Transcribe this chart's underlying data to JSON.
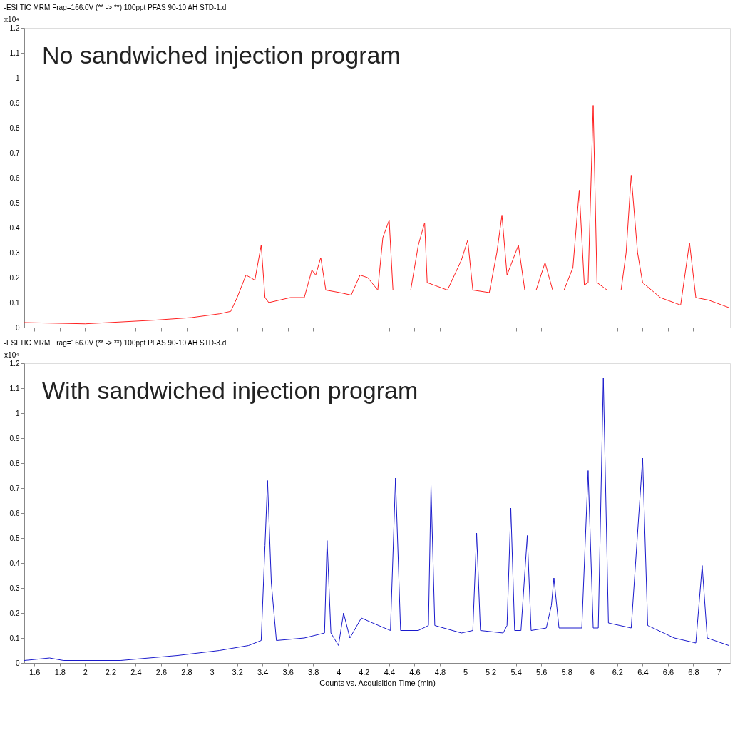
{
  "chart_data": [
    {
      "type": "line",
      "title": "-ESI TIC MRM Frag=166.0V (** -> **) 100ppt PFAS 90-10 AH STD-1.d",
      "ylabel": "x10⁴",
      "annotations": [
        "No sandwiched injection program"
      ],
      "tick_labels": "y",
      "grid": false,
      "marker": "none",
      "line_style": "solid",
      "xlim": [
        1.52,
        7.09
      ],
      "ylim": [
        0,
        1.2
      ],
      "xticks": [
        1.6,
        1.8,
        2,
        2.2,
        2.4,
        2.6,
        2.8,
        3,
        3.2,
        3.4,
        3.6,
        3.8,
        4,
        4.2,
        4.4,
        4.6,
        4.8,
        5,
        5.2,
        5.4,
        5.6,
        5.8,
        6,
        6.2,
        6.4,
        6.6,
        6.8,
        7
      ],
      "yticks": [
        0,
        0.1,
        0.2,
        0.3,
        0.4,
        0.5,
        0.6,
        0.7,
        0.8,
        0.9,
        1,
        1.1,
        1.2
      ],
      "series": [
        {
          "color": "#ff2020",
          "x": [
            1.52,
            2.0,
            2.56,
            2.84,
            3.06,
            3.15,
            3.2,
            3.27,
            3.34,
            3.39,
            3.42,
            3.45,
            3.62,
            3.73,
            3.79,
            3.82,
            3.86,
            3.9,
            4.01,
            4.1,
            4.17,
            4.23,
            4.31,
            4.35,
            4.4,
            4.43,
            4.57,
            4.63,
            4.68,
            4.7,
            4.86,
            4.97,
            5.02,
            5.06,
            5.19,
            5.25,
            5.29,
            5.33,
            5.42,
            5.47,
            5.56,
            5.63,
            5.69,
            5.78,
            5.85,
            5.9,
            5.94,
            5.97,
            6.01,
            6.04,
            6.12,
            6.23,
            6.27,
            6.31,
            6.36,
            6.4,
            6.54,
            6.7,
            6.77,
            6.82,
            6.92,
            7.08
          ],
          "values": [
            0.02,
            0.015,
            0.03,
            0.04,
            0.055,
            0.065,
            0.12,
            0.21,
            0.19,
            0.33,
            0.12,
            0.1,
            0.12,
            0.12,
            0.23,
            0.21,
            0.28,
            0.15,
            0.14,
            0.13,
            0.21,
            0.2,
            0.15,
            0.36,
            0.43,
            0.15,
            0.15,
            0.33,
            0.42,
            0.18,
            0.15,
            0.27,
            0.35,
            0.15,
            0.14,
            0.3,
            0.45,
            0.21,
            0.33,
            0.15,
            0.15,
            0.26,
            0.15,
            0.15,
            0.24,
            0.55,
            0.17,
            0.18,
            0.89,
            0.18,
            0.15,
            0.15,
            0.3,
            0.61,
            0.3,
            0.18,
            0.12,
            0.09,
            0.34,
            0.12,
            0.11,
            0.08
          ]
        }
      ]
    },
    {
      "type": "line",
      "title": "-ESI TIC MRM Frag=166.0V (** -> **) 100ppt PFAS 90-10 AH STD-3.d",
      "ylabel": "x10⁴",
      "xlabel": "Counts vs. Acquisition Time (min)",
      "annotations": [
        "With sandwiched injection program"
      ],
      "grid": false,
      "marker": "none",
      "line_style": "solid",
      "xlim": [
        1.52,
        7.09
      ],
      "ylim": [
        0,
        1.2
      ],
      "xticks": [
        1.6,
        1.8,
        2,
        2.2,
        2.4,
        2.6,
        2.8,
        3,
        3.2,
        3.4,
        3.6,
        3.8,
        4,
        4.2,
        4.4,
        4.6,
        4.8,
        5,
        5.2,
        5.4,
        5.6,
        5.8,
        6,
        6.2,
        6.4,
        6.6,
        6.8,
        7
      ],
      "yticks": [
        0,
        0.1,
        0.2,
        0.3,
        0.4,
        0.5,
        0.6,
        0.7,
        0.8,
        0.9,
        1,
        1.1,
        1.2
      ],
      "series": [
        {
          "color": "#1a1acc",
          "x": [
            1.52,
            1.72,
            1.83,
            2.28,
            2.73,
            3.06,
            3.29,
            3.39,
            3.42,
            3.44,
            3.47,
            3.51,
            3.73,
            3.89,
            3.91,
            3.94,
            4.0,
            4.04,
            4.09,
            4.18,
            4.27,
            4.41,
            4.45,
            4.49,
            4.63,
            4.71,
            4.73,
            4.76,
            4.97,
            5.06,
            5.09,
            5.12,
            5.3,
            5.33,
            5.36,
            5.39,
            5.44,
            5.49,
            5.52,
            5.64,
            5.68,
            5.7,
            5.74,
            5.92,
            5.97,
            6.01,
            6.05,
            6.09,
            6.13,
            6.31,
            6.4,
            6.44,
            6.65,
            6.82,
            6.87,
            6.91,
            7.08
          ],
          "values": [
            0.01,
            0.02,
            0.01,
            0.01,
            0.03,
            0.05,
            0.07,
            0.09,
            0.47,
            0.73,
            0.32,
            0.09,
            0.1,
            0.12,
            0.49,
            0.12,
            0.07,
            0.2,
            0.1,
            0.18,
            0.16,
            0.13,
            0.74,
            0.13,
            0.13,
            0.15,
            0.71,
            0.15,
            0.12,
            0.13,
            0.52,
            0.13,
            0.12,
            0.15,
            0.62,
            0.13,
            0.13,
            0.51,
            0.13,
            0.14,
            0.23,
            0.34,
            0.14,
            0.14,
            0.77,
            0.14,
            0.14,
            1.14,
            0.16,
            0.14,
            0.82,
            0.15,
            0.1,
            0.08,
            0.39,
            0.1,
            0.07
          ]
        }
      ]
    }
  ]
}
